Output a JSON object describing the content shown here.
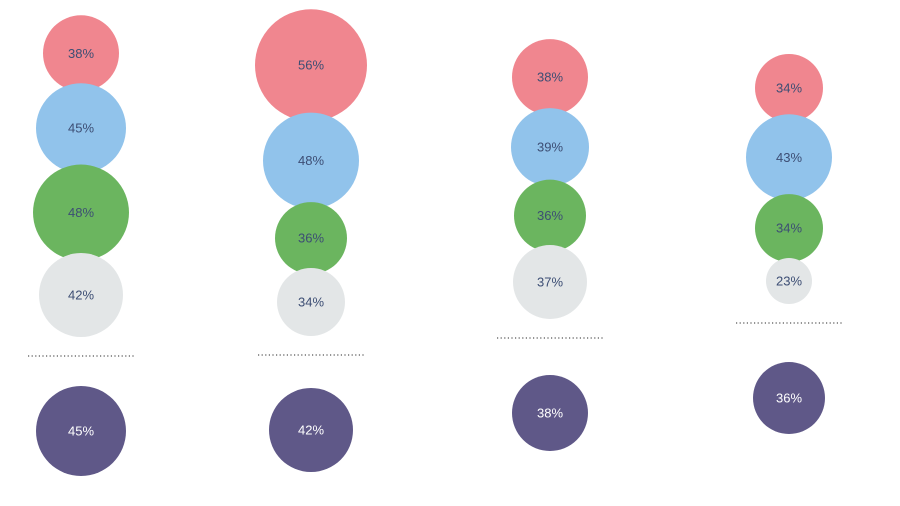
{
  "chart_data": {
    "type": "bubble",
    "title": "",
    "xlabel": "",
    "ylabel": "",
    "legend": "none",
    "grid": false,
    "colors": {
      "pink": "#F0868F",
      "blue": "#91C3EB",
      "green": "#6BB55F",
      "gray": "#E3E6E7",
      "purple": "#5F5888",
      "label_dark": "#3D4E74",
      "label_light": "#FFFFFF",
      "divider": "#555555"
    },
    "groups": [
      {
        "stack": [
          {
            "value": 38,
            "label": "38%",
            "color": "pink"
          },
          {
            "value": 45,
            "label": "45%",
            "color": "blue"
          },
          {
            "value": 48,
            "label": "48%",
            "color": "green"
          },
          {
            "value": 42,
            "label": "42%",
            "color": "gray"
          }
        ],
        "total": {
          "value": 45,
          "label": "45%",
          "color": "purple"
        }
      },
      {
        "stack": [
          {
            "value": 56,
            "label": "56%",
            "color": "pink"
          },
          {
            "value": 48,
            "label": "48%",
            "color": "blue"
          },
          {
            "value": 36,
            "label": "36%",
            "color": "green"
          },
          {
            "value": 34,
            "label": "34%",
            "color": "gray"
          }
        ],
        "total": {
          "value": 42,
          "label": "42%",
          "color": "purple"
        }
      },
      {
        "stack": [
          {
            "value": 38,
            "label": "38%",
            "color": "pink"
          },
          {
            "value": 39,
            "label": "39%",
            "color": "blue"
          },
          {
            "value": 36,
            "label": "36%",
            "color": "green"
          },
          {
            "value": 37,
            "label": "37%",
            "color": "gray"
          }
        ],
        "total": {
          "value": 38,
          "label": "38%",
          "color": "purple"
        }
      },
      {
        "stack": [
          {
            "value": 34,
            "label": "34%",
            "color": "pink"
          },
          {
            "value": 43,
            "label": "43%",
            "color": "blue"
          },
          {
            "value": 34,
            "label": "34%",
            "color": "green"
          },
          {
            "value": 23,
            "label": "23%",
            "color": "gray"
          }
        ],
        "total": {
          "value": 36,
          "label": "36%",
          "color": "purple"
        }
      }
    ]
  }
}
